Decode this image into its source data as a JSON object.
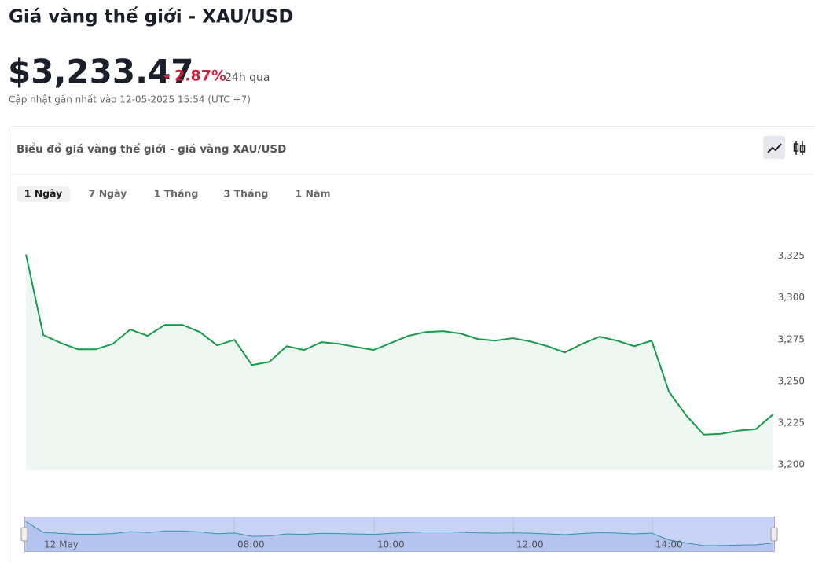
{
  "header": {
    "title": "Giá vàng thế giới - XAU/USD",
    "price": "$3,233.47",
    "change": "2.87%",
    "change_period": "24h qua",
    "updated": "Cập nhật gần nhất vào 12-05-2025 15:54 (UTC +7)"
  },
  "card": {
    "title": "Biểu đồ giá vàng thế giới - giá vàng XAU/USD",
    "tabs": [
      "1 Ngày",
      "7 Ngày",
      "1 Tháng",
      "3 Tháng",
      "1 Năm"
    ],
    "active_tab": 0
  },
  "chart_data": {
    "type": "line",
    "color": "#1a9b4b",
    "area_color": "#eef7f1",
    "values": [
      3326,
      3277.7,
      3272.9,
      3269.1,
      3269.1,
      3272.4,
      3281,
      3277.2,
      3283.8,
      3283.8,
      3279.5,
      3271.5,
      3274.8,
      3259.7,
      3261.6,
      3271,
      3268.7,
      3273.4,
      3272.4,
      3270.5,
      3268.7,
      3272.9,
      3277.2,
      3279.5,
      3280,
      3278.6,
      3275.3,
      3274.3,
      3275.8,
      3273.9,
      3271,
      3267.2,
      3272.4,
      3276.7,
      3274.3,
      3271,
      3274.3,
      3243.6,
      3229.4,
      3218,
      3218.5,
      3220.4,
      3221.3,
      3230.3
    ],
    "ylim": [
      3196.7,
      3338
    ],
    "yticks": [
      {
        "value": 3200,
        "label": "3,200"
      },
      {
        "value": 3225,
        "label": "3,225"
      },
      {
        "value": 3250,
        "label": "3,250"
      },
      {
        "value": 3275,
        "label": "3,275"
      },
      {
        "value": 3300,
        "label": "3,300"
      },
      {
        "value": 3325,
        "label": "3,325"
      }
    ],
    "navigator_labels": [
      "12 May",
      "08:00",
      "10:00",
      "12:00",
      "14:00"
    ]
  }
}
